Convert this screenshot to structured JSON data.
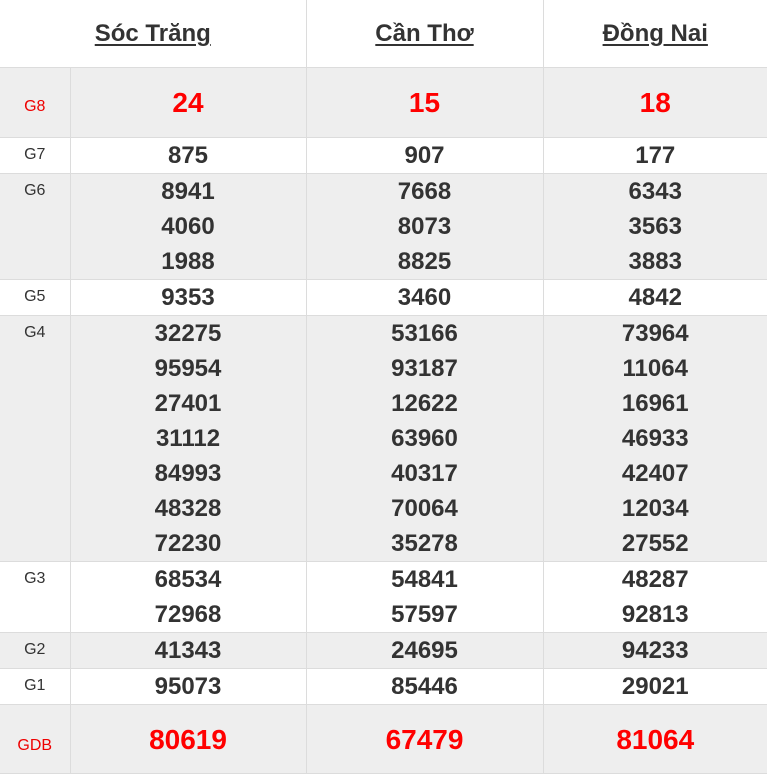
{
  "provinces": [
    "Sóc Trăng",
    "Cần Thơ",
    "Đồng Nai"
  ],
  "prizes": [
    {
      "label": "G8",
      "highlight": true,
      "results": [
        [
          "24"
        ],
        [
          "15"
        ],
        [
          "18"
        ]
      ]
    },
    {
      "label": "G7",
      "results": [
        [
          "875"
        ],
        [
          "907"
        ],
        [
          "177"
        ]
      ]
    },
    {
      "label": "G6",
      "results": [
        [
          "8941",
          "4060",
          "1988"
        ],
        [
          "7668",
          "8073",
          "8825"
        ],
        [
          "6343",
          "3563",
          "3883"
        ]
      ]
    },
    {
      "label": "G5",
      "results": [
        [
          "9353"
        ],
        [
          "3460"
        ],
        [
          "4842"
        ]
      ]
    },
    {
      "label": "G4",
      "results": [
        [
          "32275",
          "95954",
          "27401",
          "31112",
          "84993",
          "48328",
          "72230"
        ],
        [
          "53166",
          "93187",
          "12622",
          "63960",
          "40317",
          "70064",
          "35278"
        ],
        [
          "73964",
          "11064",
          "16961",
          "46933",
          "42407",
          "12034",
          "27552"
        ]
      ]
    },
    {
      "label": "G3",
      "results": [
        [
          "68534",
          "72968"
        ],
        [
          "54841",
          "57597"
        ],
        [
          "48287",
          "92813"
        ]
      ]
    },
    {
      "label": "G2",
      "results": [
        [
          "41343"
        ],
        [
          "24695"
        ],
        [
          "94233"
        ]
      ]
    },
    {
      "label": "G1",
      "results": [
        [
          "95073"
        ],
        [
          "85446"
        ],
        [
          "29021"
        ]
      ]
    },
    {
      "label": "GDB",
      "highlight": true,
      "results": [
        [
          "80619"
        ],
        [
          "67479"
        ],
        [
          "81064"
        ]
      ]
    }
  ],
  "colors": {
    "highlight": "#ff0000",
    "row_alt": "#eeeeee",
    "text": "#333333"
  }
}
